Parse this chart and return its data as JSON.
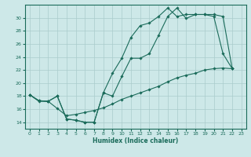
{
  "title": "",
  "xlabel": "Humidex (Indice chaleur)",
  "background_color": "#cde8e8",
  "line_color": "#1a6b5a",
  "grid_color": "#aacccc",
  "xlim": [
    -0.5,
    23.5
  ],
  "ylim": [
    13.0,
    32.0
  ],
  "xticks": [
    0,
    1,
    2,
    3,
    4,
    5,
    6,
    7,
    8,
    9,
    10,
    11,
    12,
    13,
    14,
    15,
    16,
    17,
    18,
    19,
    20,
    21,
    22,
    23
  ],
  "yticks": [
    14,
    16,
    18,
    20,
    22,
    24,
    26,
    28,
    30
  ],
  "line1_x": [
    0,
    1,
    2,
    3,
    4,
    5,
    6,
    7,
    8,
    9,
    10,
    11,
    12,
    13,
    14,
    15,
    16,
    17,
    18,
    19,
    20,
    21,
    22
  ],
  "line1_y": [
    18.2,
    17.3,
    17.2,
    18.0,
    14.5,
    14.3,
    14.0,
    14.0,
    18.5,
    18.0,
    21.0,
    23.8,
    23.8,
    24.5,
    27.3,
    30.2,
    31.5,
    29.9,
    30.5,
    30.5,
    30.5,
    30.2,
    22.2
  ],
  "line2_x": [
    0,
    1,
    2,
    3,
    4,
    5,
    6,
    7,
    8,
    9,
    10,
    11,
    12,
    13,
    14,
    15,
    16,
    17,
    18,
    19,
    20,
    21,
    22
  ],
  "line2_y": [
    18.2,
    17.3,
    17.2,
    18.0,
    14.5,
    14.3,
    14.0,
    14.0,
    18.5,
    21.5,
    23.8,
    27.0,
    28.8,
    29.2,
    30.2,
    31.5,
    30.2,
    30.5,
    30.5,
    30.5,
    30.2,
    24.5,
    22.2
  ],
  "line3_x": [
    0,
    1,
    2,
    3,
    4,
    5,
    6,
    7,
    8,
    9,
    10,
    11,
    12,
    13,
    14,
    15,
    16,
    17,
    18,
    19,
    20,
    21,
    22
  ],
  "line3_y": [
    18.2,
    17.2,
    17.2,
    16.1,
    15.0,
    15.2,
    15.5,
    15.8,
    16.2,
    16.8,
    17.5,
    18.0,
    18.5,
    19.0,
    19.5,
    20.2,
    20.8,
    21.2,
    21.5,
    22.0,
    22.2,
    22.3,
    22.2
  ]
}
